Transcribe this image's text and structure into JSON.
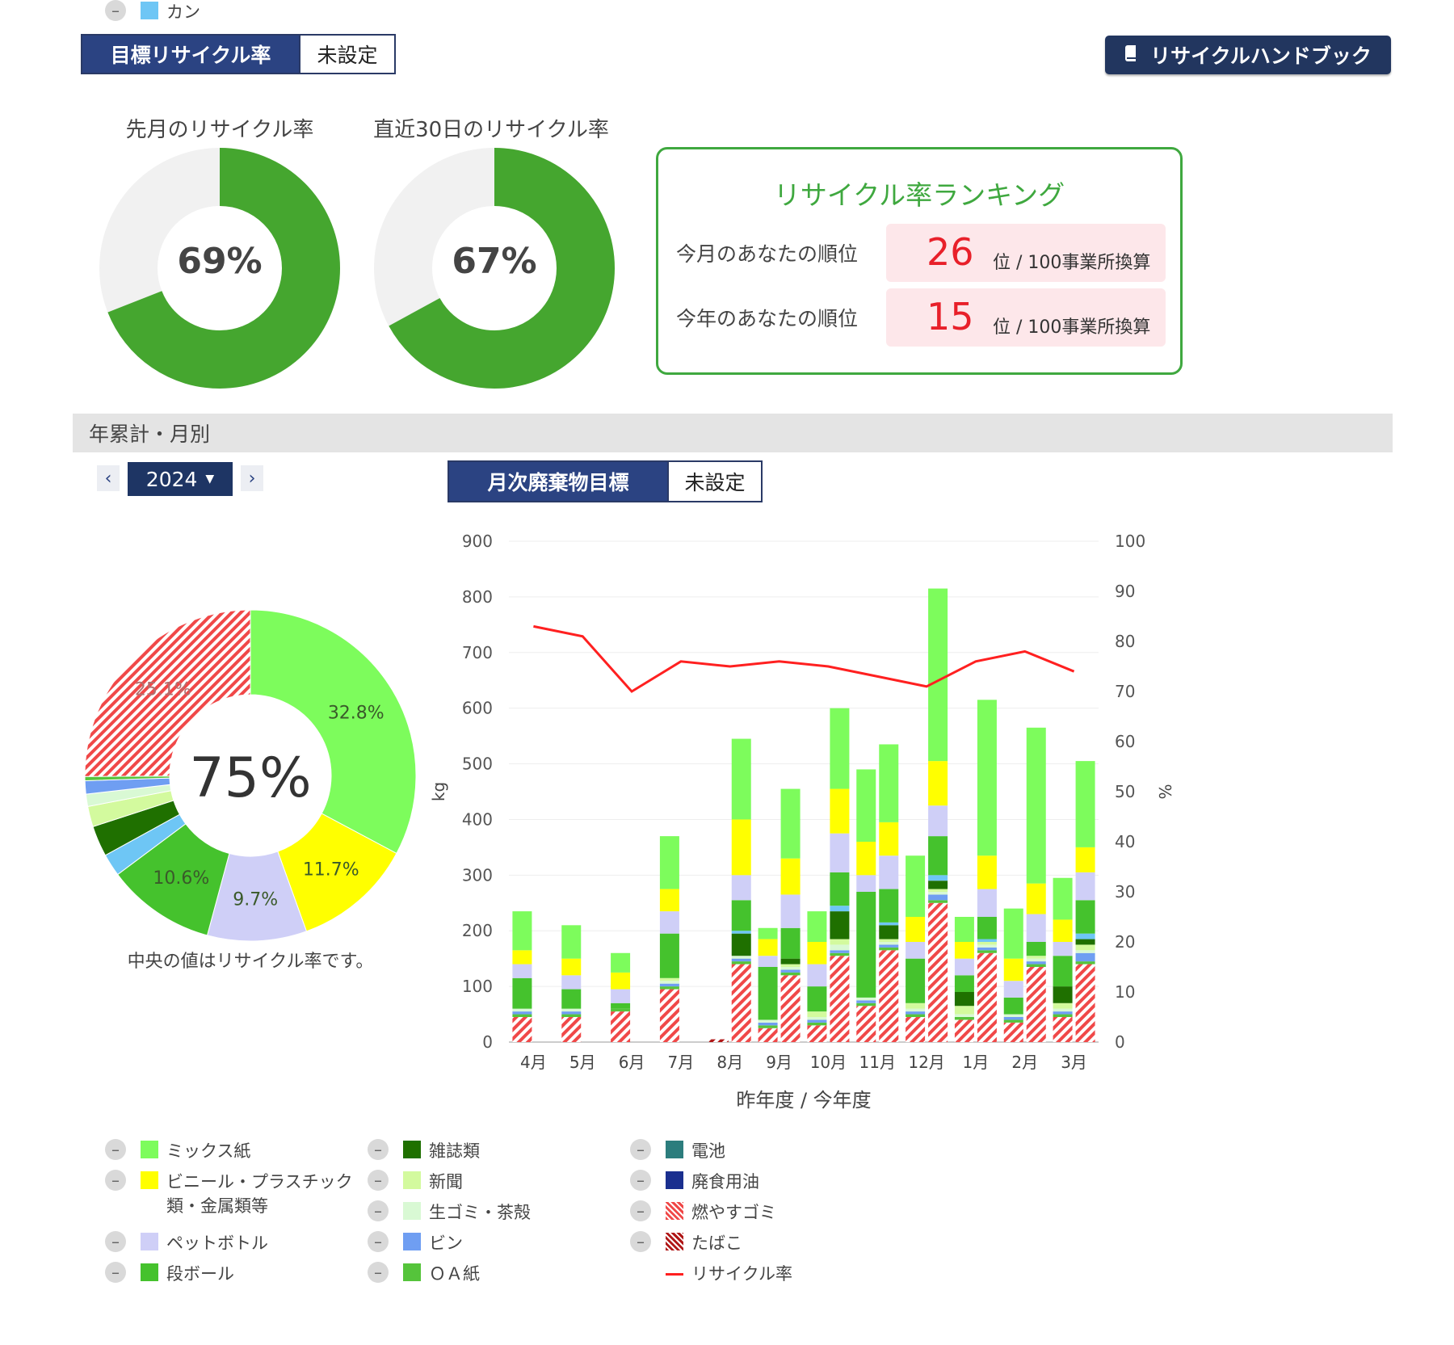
{
  "header": {
    "target_label": "目標リサイクル率",
    "target_value": "未設定",
    "handbook_label": "リサイクルハンドブック",
    "handbook_icon": "book-icon"
  },
  "donuts": [
    {
      "title": "先月のリサイクル率",
      "percent": "69%",
      "value": 69
    },
    {
      "title": "直近30日のリサイクル率",
      "percent": "67%",
      "value": 67
    }
  ],
  "ranking": {
    "title": "リサイクル率ランキング",
    "rows": [
      {
        "label": "今月のあなたの順位",
        "rank": "26",
        "unit": "位 / 100事業所換算"
      },
      {
        "label": "今年のあなたの順位",
        "rank": "15",
        "unit": "位 / 100事業所換算"
      }
    ]
  },
  "section": {
    "title": "年累計・月別",
    "year": "2024",
    "prev_icon": "chevron-left-icon",
    "next_icon": "chevron-right-icon",
    "monthly_target_label": "月次廃棄物目標",
    "monthly_target_value": "未設定"
  },
  "pie": {
    "center": "75%",
    "note": "中央の値はリサイクル率です。",
    "slices": [
      {
        "name": "ミックス紙",
        "value": 32.8,
        "label": "32.8%"
      },
      {
        "name": "ビニール・プラスチック類・金属類等",
        "value": 11.7,
        "label": "11.7%"
      },
      {
        "name": "ペットボトル",
        "value": 9.7,
        "label": "9.7%"
      },
      {
        "name": "段ボール",
        "value": 10.6,
        "label": "10.6%"
      },
      {
        "name": "カン",
        "value": 2.2,
        "label": ""
      },
      {
        "name": "雑誌類",
        "value": 3.0,
        "label": ""
      },
      {
        "name": "新聞",
        "value": 2.0,
        "label": ""
      },
      {
        "name": "生ゴミ・茶殻",
        "value": 1.2,
        "label": ""
      },
      {
        "name": "ビン",
        "value": 1.3,
        "label": ""
      },
      {
        "name": "ＯＡ紙",
        "value": 0.4,
        "label": ""
      },
      {
        "name": "燃やすゴミ",
        "value": 25.1,
        "label": "25.1%"
      }
    ]
  },
  "chart_data": {
    "type": "bar",
    "stacked": true,
    "categories": [
      "4月",
      "5月",
      "6月",
      "7月",
      "8月",
      "9月",
      "10月",
      "11月",
      "12月",
      "1月",
      "2月",
      "3月"
    ],
    "xlabel": "昨年度 / 今年度",
    "ylabel": "kg",
    "y2label": "%",
    "ylim": [
      0,
      900
    ],
    "y2lim": [
      0,
      100
    ],
    "yticks": [
      0,
      100,
      200,
      300,
      400,
      500,
      600,
      700,
      800,
      900
    ],
    "y2ticks": [
      0,
      10,
      20,
      30,
      40,
      50,
      60,
      70,
      80,
      90,
      100
    ],
    "groups": [
      {
        "year": "昨年度",
        "series": [
          {
            "name": "燃やすゴミ",
            "values": [
              45,
              45,
              55,
              95,
              0,
              25,
              30,
              65,
              45,
              40,
              35,
              45
            ]
          },
          {
            "name": "たばこ",
            "values": [
              0,
              0,
              0,
              0,
              5,
              0,
              0,
              0,
              0,
              0,
              0,
              0
            ]
          },
          {
            "name": "ＯＡ紙",
            "values": [
              5,
              5,
              5,
              5,
              0,
              5,
              5,
              5,
              5,
              5,
              5,
              5
            ]
          },
          {
            "name": "ビン",
            "values": [
              5,
              5,
              0,
              5,
              0,
              5,
              5,
              5,
              5,
              0,
              5,
              5
            ]
          },
          {
            "name": "生ゴミ・茶殻",
            "values": [
              5,
              5,
              0,
              5,
              0,
              5,
              5,
              5,
              5,
              5,
              5,
              5
            ]
          },
          {
            "name": "新聞",
            "values": [
              0,
              0,
              0,
              5,
              0,
              0,
              10,
              0,
              10,
              15,
              0,
              10
            ]
          },
          {
            "name": "雑誌類",
            "values": [
              0,
              0,
              0,
              0,
              0,
              0,
              0,
              0,
              0,
              25,
              0,
              30
            ]
          },
          {
            "name": "カン",
            "values": [
              0,
              0,
              0,
              0,
              0,
              0,
              0,
              0,
              0,
              0,
              0,
              0
            ]
          },
          {
            "name": "段ボール",
            "values": [
              55,
              35,
              10,
              80,
              0,
              95,
              45,
              190,
              80,
              30,
              30,
              55
            ]
          },
          {
            "name": "ペットボトル",
            "values": [
              25,
              25,
              25,
              40,
              0,
              20,
              40,
              30,
              30,
              30,
              30,
              25
            ]
          },
          {
            "name": "ビニール・プラスチック類・金属類等",
            "values": [
              25,
              30,
              30,
              40,
              0,
              30,
              40,
              60,
              45,
              30,
              40,
              40
            ]
          },
          {
            "name": "ミックス紙",
            "values": [
              70,
              60,
              35,
              95,
              0,
              20,
              55,
              130,
              110,
              45,
              90,
              75
            ]
          }
        ]
      },
      {
        "year": "今年度",
        "series": [
          {
            "name": "燃やすゴミ",
            "values": [
              0,
              0,
              0,
              0,
              140,
              120,
              155,
              165,
              250,
              160,
              135,
              140
            ]
          },
          {
            "name": "たばこ",
            "values": [
              0,
              0,
              0,
              0,
              0,
              0,
              0,
              0,
              0,
              0,
              0,
              0
            ]
          },
          {
            "name": "ＯＡ紙",
            "values": [
              0,
              0,
              0,
              0,
              5,
              5,
              5,
              5,
              5,
              5,
              5,
              5
            ]
          },
          {
            "name": "ビン",
            "values": [
              0,
              0,
              0,
              0,
              5,
              5,
              5,
              5,
              10,
              5,
              5,
              15
            ]
          },
          {
            "name": "生ゴミ・茶殻",
            "values": [
              0,
              0,
              0,
              0,
              5,
              5,
              10,
              5,
              5,
              5,
              5,
              5
            ]
          },
          {
            "name": "新聞",
            "values": [
              0,
              0,
              0,
              0,
              0,
              5,
              10,
              5,
              5,
              5,
              5,
              10
            ]
          },
          {
            "name": "雑誌類",
            "values": [
              0,
              0,
              0,
              0,
              40,
              10,
              50,
              25,
              15,
              0,
              0,
              10
            ]
          },
          {
            "name": "カン",
            "values": [
              0,
              0,
              0,
              0,
              5,
              0,
              10,
              5,
              10,
              5,
              0,
              10
            ]
          },
          {
            "name": "段ボール",
            "values": [
              0,
              0,
              0,
              0,
              55,
              55,
              60,
              60,
              70,
              40,
              25,
              60
            ]
          },
          {
            "name": "ペットボトル",
            "values": [
              0,
              0,
              0,
              0,
              45,
              60,
              70,
              60,
              55,
              50,
              50,
              50
            ]
          },
          {
            "name": "ビニール・プラスチック類・金属類等",
            "values": [
              0,
              0,
              0,
              0,
              100,
              65,
              80,
              60,
              80,
              60,
              55,
              45
            ]
          },
          {
            "name": "ミックス紙",
            "values": [
              0,
              0,
              0,
              0,
              145,
              125,
              145,
              140,
              310,
              280,
              280,
              155
            ]
          }
        ]
      }
    ],
    "line": {
      "name": "リサイクル率",
      "values": [
        83,
        81,
        70,
        76,
        75,
        76,
        75,
        73,
        71,
        76,
        78,
        74
      ]
    },
    "colors": {
      "ミックス紙": "#7dfc5c",
      "ビニール・プラスチック類・金属類等": "#ffff00",
      "ペットボトル": "#cfcff7",
      "段ボール": "#45c22d",
      "カン": "#6ec6f5",
      "雑誌類": "#1f7000",
      "新聞": "#d3fa9e",
      "生ゴミ・茶殻": "#d9f9d4",
      "ビン": "#6f9ef2",
      "ＯＡ紙": "#55c43b",
      "電池": "#2c7d7d",
      "廃食用油": "#1a2f8f",
      "燃やすゴミ": "#f04848",
      "たばこ": "#b01818",
      "リサイクル率": "#ff2020"
    }
  },
  "legend": [
    {
      "name": "ミックス紙",
      "lines": [
        "ミックス紙"
      ],
      "color": "#7dfc5c",
      "kind": "box"
    },
    {
      "name": "ビニール・プラスチック類・金属類等",
      "lines": [
        "ビニール・プラスチック",
        "類・金属類等"
      ],
      "color": "#ffff00",
      "kind": "box"
    },
    {
      "name": "ペットボトル",
      "lines": [
        "ペットボトル"
      ],
      "color": "#cfcff7",
      "kind": "box"
    },
    {
      "name": "段ボール",
      "lines": [
        "段ボール"
      ],
      "color": "#45c22d",
      "kind": "box"
    },
    {
      "name": "カン",
      "lines": [
        "カン"
      ],
      "color": "#6ec6f5",
      "kind": "box"
    },
    {
      "name": "雑誌類",
      "lines": [
        "雑誌類"
      ],
      "color": "#1f7000",
      "kind": "box"
    },
    {
      "name": "新聞",
      "lines": [
        "新聞"
      ],
      "color": "#d3fa9e",
      "kind": "box"
    },
    {
      "name": "生ゴミ・茶殻",
      "lines": [
        "生ゴミ・茶殻"
      ],
      "color": "#d9f9d4",
      "kind": "box"
    },
    {
      "name": "ビン",
      "lines": [
        "ビン"
      ],
      "color": "#6f9ef2",
      "kind": "box"
    },
    {
      "name": "ＯＡ紙",
      "lines": [
        "ＯＡ紙"
      ],
      "color": "#55c43b",
      "kind": "box"
    },
    {
      "name": "電池",
      "lines": [
        "電池"
      ],
      "color": "#2c7d7d",
      "kind": "box"
    },
    {
      "name": "廃食用油",
      "lines": [
        "廃食用油"
      ],
      "color": "#1a2f8f",
      "kind": "box"
    },
    {
      "name": "燃やすゴミ",
      "lines": [
        "燃やすゴミ"
      ],
      "color": "#f04848",
      "kind": "hatch"
    },
    {
      "name": "たばこ",
      "lines": [
        "たばこ"
      ],
      "color": "#b01818",
      "kind": "hatch"
    },
    {
      "name": "リサイクル率",
      "lines": [
        "リサイクル率"
      ],
      "color": "#ff2020",
      "kind": "line"
    }
  ]
}
